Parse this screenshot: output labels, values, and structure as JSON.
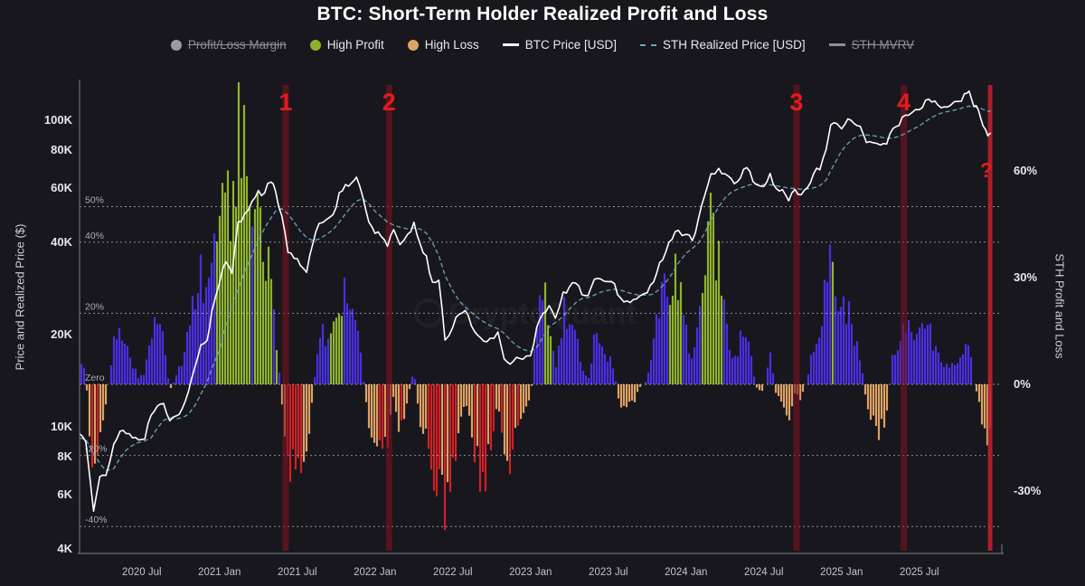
{
  "title": "BTC: Short-Term Holder Realized Profit and Loss",
  "watermark": "CryptoQuant",
  "legend": [
    {
      "label": "Profit/Loss Margin",
      "swatch": "dot",
      "color": "#9b9ba6",
      "enabled": false
    },
    {
      "label": "High Profit",
      "swatch": "dot",
      "color": "#8cb32b",
      "enabled": true
    },
    {
      "label": "High Loss",
      "swatch": "dot",
      "color": "#dfa465",
      "enabled": true
    },
    {
      "label": "BTC Price [USD]",
      "swatch": "line",
      "color": "#ffffff",
      "enabled": true
    },
    {
      "label": "STH Realized Price [USD]",
      "swatch": "dash",
      "color": "#6ea9bd",
      "enabled": true
    },
    {
      "label": "STH MVRV",
      "swatch": "line",
      "color": "#8a8f99",
      "enabled": false
    }
  ],
  "y_left": {
    "title": "Price and Realized Price ($)",
    "ticks": [
      {
        "label": "100K",
        "value": 100
      },
      {
        "label": "80K",
        "value": 80
      },
      {
        "label": "60K",
        "value": 60
      },
      {
        "label": "40K",
        "value": 40
      },
      {
        "label": "20K",
        "value": 20
      },
      {
        "label": "10K",
        "value": 10
      },
      {
        "label": "8K",
        "value": 8
      },
      {
        "label": "6K",
        "value": 6
      },
      {
        "label": "4K",
        "value": 4
      }
    ]
  },
  "y_right": {
    "title": "STH Profit and Loss",
    "ticks": [
      {
        "label": "60%",
        "value": 60
      },
      {
        "label": "30%",
        "value": 30
      },
      {
        "label": "0%",
        "value": 0
      },
      {
        "label": "-30%",
        "value": -30
      }
    ]
  },
  "x_axis": {
    "ticks": [
      {
        "label": "2020 Jul",
        "t": 2020.5
      },
      {
        "label": "2021 Jan",
        "t": 2021.0
      },
      {
        "label": "2021 Jul",
        "t": 2021.5
      },
      {
        "label": "2022 Jan",
        "t": 2022.0
      },
      {
        "label": "2022 Jul",
        "t": 2022.5
      },
      {
        "label": "2023 Jan",
        "t": 2023.0
      },
      {
        "label": "2023 Jul",
        "t": 2023.5
      },
      {
        "label": "2024 Jan",
        "t": 2024.0
      },
      {
        "label": "2024 Jul",
        "t": 2024.5
      },
      {
        "label": "2025 Jan",
        "t": 2025.0
      },
      {
        "label": "2025 Jul",
        "t": 2025.5
      }
    ]
  },
  "margin_gridlines": [
    {
      "label": "50%",
      "value": 50
    },
    {
      "label": "40%",
      "value": 40
    },
    {
      "label": "20%",
      "value": 20
    },
    {
      "label": "Zero",
      "value": 0
    },
    {
      "label": "-20%",
      "value": -20
    },
    {
      "label": "-40%",
      "value": -40
    }
  ],
  "event_markers": [
    {
      "label": "1",
      "t": 2021.425,
      "style": "band"
    },
    {
      "label": "2",
      "t": 2022.09,
      "style": "band"
    },
    {
      "label": "3",
      "t": 2024.71,
      "style": "band"
    },
    {
      "label": "4",
      "t": 2025.4,
      "style": "band"
    },
    {
      "label": "?",
      "t": 2025.955,
      "style": "highlight"
    }
  ],
  "chart_data": {
    "type": "mixed",
    "x_unit": "decimal_year",
    "x_range": [
      2020.1,
      2025.96
    ],
    "left_axis": {
      "scale": "log",
      "unit": "USD",
      "range_k": [
        4,
        135
      ]
    },
    "right_axis": {
      "scale": "linear",
      "unit": "percent",
      "zero_aligned_to_histogram": true
    },
    "series": [
      {
        "name": "BTC Price [USD]",
        "type": "line",
        "color": "#ffffff",
        "axis": "left"
      },
      {
        "name": "STH Realized Price [USD]",
        "type": "line",
        "style": "dashed",
        "color": "#6ea9bd",
        "axis": "left"
      },
      {
        "name": "STH Profit and Loss",
        "type": "bar",
        "axis": "right",
        "colors": {
          "profit": "#4a2ee0",
          "high_profit": "#8eb42c",
          "loss": "#dfa263",
          "high_loss": "#cf2126"
        }
      }
    ],
    "point_fields": [
      "decimal_year",
      "btc_price_kusd",
      "sth_realized_price_kusd",
      "sth_pnl_percent",
      "flag"
    ],
    "points": [
      [
        2020.1,
        9.5,
        9.2,
        8,
        ""
      ],
      [
        2020.14,
        9.0,
        9.1,
        2,
        ""
      ],
      [
        2020.19,
        5.3,
        8.2,
        -28,
        "r"
      ],
      [
        2020.23,
        6.9,
        7.6,
        -14,
        "r"
      ],
      [
        2020.27,
        7.0,
        7.2,
        -6,
        ""
      ],
      [
        2020.32,
        8.8,
        7.3,
        12,
        ""
      ],
      [
        2020.36,
        9.7,
        7.9,
        16,
        ""
      ],
      [
        2020.4,
        9.5,
        8.4,
        10,
        ""
      ],
      [
        2020.44,
        9.2,
        8.7,
        5,
        ""
      ],
      [
        2020.48,
        9.1,
        8.9,
        2,
        ""
      ],
      [
        2020.52,
        9.2,
        9.0,
        3,
        ""
      ],
      [
        2020.56,
        10.9,
        9.2,
        15,
        ""
      ],
      [
        2020.6,
        11.8,
        9.9,
        17,
        ""
      ],
      [
        2020.64,
        11.9,
        10.5,
        12,
        ""
      ],
      [
        2020.68,
        10.5,
        10.7,
        -2,
        ""
      ],
      [
        2020.72,
        10.8,
        10.6,
        2,
        ""
      ],
      [
        2020.76,
        11.4,
        10.7,
        6,
        ""
      ],
      [
        2020.8,
        13.0,
        11.0,
        16,
        ""
      ],
      [
        2020.84,
        15.6,
        11.7,
        25,
        ""
      ],
      [
        2020.88,
        18.4,
        12.8,
        30,
        ""
      ],
      [
        2020.92,
        19.2,
        14.0,
        27,
        ""
      ],
      [
        2020.95,
        23.6,
        15.5,
        42,
        "g"
      ],
      [
        2021.0,
        29.2,
        17.8,
        55,
        "g"
      ],
      [
        2021.04,
        34.8,
        21.5,
        70,
        "g"
      ],
      [
        2021.08,
        31.8,
        24.5,
        30,
        "g"
      ],
      [
        2021.12,
        46.5,
        28.0,
        78,
        "g"
      ],
      [
        2021.16,
        48.9,
        32.0,
        62,
        "g"
      ],
      [
        2021.21,
        55.0,
        36.5,
        51,
        "g"
      ],
      [
        2021.25,
        58.9,
        40.5,
        45,
        "g"
      ],
      [
        2021.29,
        57.8,
        44.5,
        30,
        "g"
      ],
      [
        2021.33,
        63.5,
        48.0,
        32,
        "g"
      ],
      [
        2021.36,
        58.7,
        50.5,
        16,
        "g"
      ],
      [
        2021.4,
        49.0,
        51.5,
        -5,
        ""
      ],
      [
        2021.44,
        37.3,
        49.5,
        -25,
        "r"
      ],
      [
        2021.48,
        35.6,
        46.5,
        -23,
        "r"
      ],
      [
        2021.52,
        33.4,
        43.5,
        -23,
        "r"
      ],
      [
        2021.56,
        31.8,
        41.5,
        -23,
        ""
      ],
      [
        2021.6,
        39.8,
        40.5,
        -2,
        ""
      ],
      [
        2021.64,
        45.6,
        41.0,
        11,
        ""
      ],
      [
        2021.69,
        47.2,
        42.5,
        11,
        ""
      ],
      [
        2021.73,
        48.9,
        44.0,
        15,
        "g"
      ],
      [
        2021.77,
        57.6,
        46.5,
        24,
        "g"
      ],
      [
        2021.81,
        61.4,
        49.5,
        24,
        "g"
      ],
      [
        2021.85,
        63.0,
        52.5,
        20,
        ""
      ],
      [
        2021.88,
        65.4,
        54.5,
        20,
        ""
      ],
      [
        2021.92,
        57.2,
        55.5,
        3,
        ""
      ],
      [
        2021.96,
        46.8,
        53.5,
        -13,
        ""
      ],
      [
        2022.0,
        43.2,
        50.5,
        -15,
        ""
      ],
      [
        2022.04,
        41.6,
        48.5,
        -14,
        "r"
      ],
      [
        2022.08,
        38.6,
        46.5,
        -17,
        "r"
      ],
      [
        2022.12,
        44.1,
        45.5,
        -3,
        ""
      ],
      [
        2022.16,
        39.2,
        44.8,
        -13,
        "r"
      ],
      [
        2022.21,
        42.4,
        44.2,
        -4,
        ""
      ],
      [
        2022.25,
        46.2,
        44.5,
        4,
        ""
      ],
      [
        2022.29,
        39.6,
        44.2,
        -11,
        ""
      ],
      [
        2022.33,
        36.0,
        42.8,
        -16,
        "r"
      ],
      [
        2022.37,
        29.6,
        39.8,
        -26,
        "r"
      ],
      [
        2022.41,
        29.9,
        36.2,
        -18,
        "r"
      ],
      [
        2022.45,
        19.1,
        31.2,
        -39,
        "r"
      ],
      [
        2022.5,
        21.3,
        27.8,
        -23,
        "r"
      ],
      [
        2022.54,
        23.1,
        25.8,
        -10,
        ""
      ],
      [
        2022.58,
        23.8,
        24.6,
        -3,
        ""
      ],
      [
        2022.62,
        21.4,
        23.6,
        -12,
        ""
      ],
      [
        2022.66,
        19.9,
        22.7,
        -22,
        "r"
      ],
      [
        2022.7,
        18.9,
        22.0,
        -29,
        "r"
      ],
      [
        2022.74,
        19.5,
        21.4,
        -17,
        "r"
      ],
      [
        2022.79,
        20.4,
        20.9,
        -4,
        ""
      ],
      [
        2022.83,
        16.6,
        20.2,
        -20,
        "r"
      ],
      [
        2022.87,
        16.1,
        19.2,
        -25,
        "r"
      ],
      [
        2022.91,
        16.9,
        18.4,
        -12,
        "r"
      ],
      [
        2022.95,
        16.6,
        17.9,
        -8,
        ""
      ],
      [
        2023.0,
        16.9,
        17.6,
        -4,
        ""
      ],
      [
        2023.04,
        21.1,
        18.2,
        16,
        ""
      ],
      [
        2023.08,
        23.2,
        19.6,
        26,
        "g"
      ],
      [
        2023.12,
        24.7,
        21.2,
        18,
        "g"
      ],
      [
        2023.16,
        22.5,
        21.9,
        3,
        ""
      ],
      [
        2023.21,
        27.6,
        22.9,
        20,
        ""
      ],
      [
        2023.25,
        28.4,
        24.2,
        17,
        ""
      ],
      [
        2023.29,
        29.3,
        25.4,
        15,
        ""
      ],
      [
        2023.33,
        27.1,
        26.2,
        4,
        ""
      ],
      [
        2023.37,
        26.6,
        26.4,
        1,
        ""
      ],
      [
        2023.41,
        30.3,
        26.9,
        13,
        ""
      ],
      [
        2023.45,
        30.6,
        27.5,
        11,
        ""
      ],
      [
        2023.5,
        30.0,
        27.9,
        7,
        ""
      ],
      [
        2023.54,
        29.1,
        28.1,
        3,
        ""
      ],
      [
        2023.58,
        26.1,
        27.9,
        -7,
        ""
      ],
      [
        2023.62,
        26.0,
        27.5,
        -6,
        ""
      ],
      [
        2023.66,
        25.9,
        27.1,
        -5,
        ""
      ],
      [
        2023.7,
        26.7,
        26.9,
        -1,
        ""
      ],
      [
        2023.75,
        27.1,
        26.9,
        1,
        ""
      ],
      [
        2023.79,
        29.8,
        27.1,
        10,
        ""
      ],
      [
        2023.83,
        34.6,
        28.2,
        22,
        ""
      ],
      [
        2023.87,
        37.4,
        29.6,
        25,
        ""
      ],
      [
        2023.91,
        41.2,
        31.6,
        30,
        "g"
      ],
      [
        2023.95,
        43.8,
        34.2,
        28,
        "g"
      ],
      [
        2024.0,
        42.5,
        36.8,
        15,
        ""
      ],
      [
        2024.04,
        40.1,
        38.2,
        5,
        ""
      ],
      [
        2024.08,
        48.2,
        39.8,
        21,
        ""
      ],
      [
        2024.12,
        57.1,
        42.8,
        33,
        "g"
      ],
      [
        2024.16,
        66.6,
        47.2,
        41,
        "g"
      ],
      [
        2024.21,
        69.4,
        52.2,
        33,
        "g"
      ],
      [
        2024.25,
        67.1,
        55.8,
        20,
        ""
      ],
      [
        2024.29,
        63.9,
        58.2,
        10,
        ""
      ],
      [
        2024.33,
        63.1,
        59.6,
        6,
        ""
      ],
      [
        2024.37,
        69.1,
        60.6,
        14,
        ""
      ],
      [
        2024.41,
        67.7,
        61.6,
        10,
        ""
      ],
      [
        2024.45,
        61.2,
        61.9,
        -1,
        ""
      ],
      [
        2024.5,
        60.4,
        61.6,
        -2,
        ""
      ],
      [
        2024.54,
        67.2,
        61.6,
        9,
        ""
      ],
      [
        2024.58,
        59.5,
        61.1,
        -3,
        ""
      ],
      [
        2024.62,
        58.8,
        60.6,
        -4,
        ""
      ],
      [
        2024.66,
        54.2,
        60.1,
        -10,
        ""
      ],
      [
        2024.7,
        59.0,
        59.9,
        -2,
        ""
      ],
      [
        2024.74,
        57.4,
        59.6,
        -4,
        ""
      ],
      [
        2024.78,
        60.9,
        59.7,
        2,
        ""
      ],
      [
        2024.82,
        66.6,
        60.2,
        11,
        ""
      ],
      [
        2024.86,
        69.5,
        61.2,
        14,
        ""
      ],
      [
        2024.9,
        80.3,
        63.8,
        26,
        ""
      ],
      [
        2024.93,
        95.8,
        68.5,
        33,
        "g"
      ],
      [
        2024.97,
        97.4,
        74.5,
        26,
        ""
      ],
      [
        2025.0,
        94.5,
        79.5,
        19,
        ""
      ],
      [
        2025.04,
        102.0,
        84.0,
        21,
        ""
      ],
      [
        2025.08,
        97.1,
        87.5,
        11,
        ""
      ],
      [
        2025.12,
        96.0,
        89.2,
        8,
        ""
      ],
      [
        2025.16,
        84.5,
        89.6,
        -6,
        ""
      ],
      [
        2025.2,
        84.1,
        89.1,
        -10,
        ""
      ],
      [
        2025.25,
        82.6,
        88.2,
        -13,
        ""
      ],
      [
        2025.29,
        83.8,
        87.2,
        -8,
        ""
      ],
      [
        2025.33,
        94.1,
        87.6,
        8,
        ""
      ],
      [
        2025.37,
        96.4,
        88.6,
        9,
        ""
      ],
      [
        2025.41,
        104.5,
        90.6,
        16,
        ""
      ],
      [
        2025.45,
        106.0,
        93.2,
        14,
        ""
      ],
      [
        2025.5,
        108.1,
        95.8,
        13,
        ""
      ],
      [
        2025.54,
        117.4,
        99.2,
        18,
        ""
      ],
      [
        2025.58,
        115.1,
        102.2,
        12,
        ""
      ],
      [
        2025.62,
        113.1,
        104.6,
        8,
        ""
      ],
      [
        2025.66,
        111.2,
        106.2,
        5,
        ""
      ],
      [
        2025.7,
        112.4,
        107.2,
        5,
        ""
      ],
      [
        2025.75,
        114.1,
        108.6,
        5,
        ""
      ],
      [
        2025.79,
        121.2,
        110.2,
        10,
        ""
      ],
      [
        2025.82,
        124.4,
        111.2,
        12,
        ""
      ],
      [
        2025.85,
        110.2,
        110.6,
        0,
        ""
      ],
      [
        2025.88,
        107.4,
        110.1,
        -4,
        ""
      ],
      [
        2025.91,
        96.4,
        108.6,
        -11,
        ""
      ],
      [
        2025.94,
        88.2,
        107.2,
        -17,
        ""
      ],
      [
        2025.96,
        90.5,
        107.0,
        -15,
        ""
      ]
    ]
  }
}
